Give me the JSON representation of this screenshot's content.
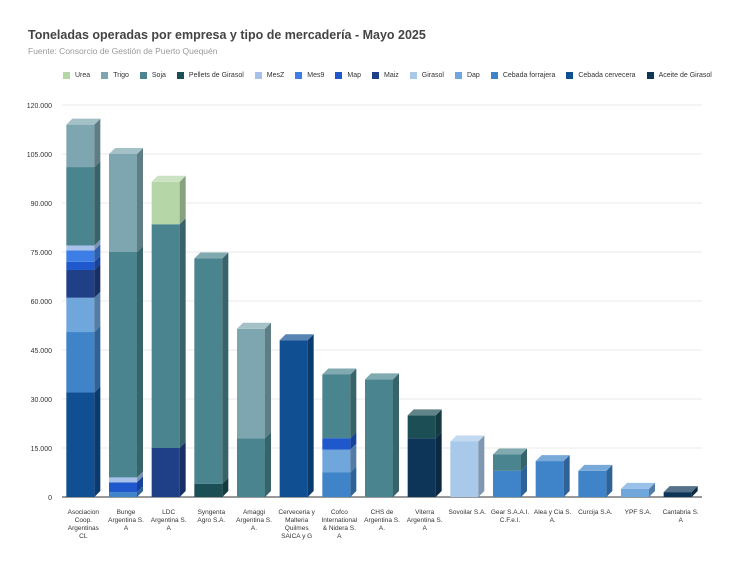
{
  "header": {
    "title": "Toneladas operadas por empresa y tipo de mercadería - Mayo 2025",
    "subtitle": "Fuente: Consorcio de Gestión de Puerto Quequén"
  },
  "chart_data": {
    "type": "bar",
    "stacked": true,
    "title": "Toneladas operadas por empresa y tipo de mercadería - Mayo 2025",
    "subtitle": "Fuente: Consorcio de Gestión de Puerto Quequén",
    "xlabel": "",
    "ylabel": "",
    "ylim": [
      0,
      120000
    ],
    "yticks": [
      0,
      15000,
      30000,
      45000,
      60000,
      75000,
      90000,
      105000,
      120000
    ],
    "ytick_labels": [
      "0",
      "15.000",
      "30.000",
      "45.000",
      "60.000",
      "75.000",
      "90.000",
      "105.000",
      "120.000"
    ],
    "grid": true,
    "legend_position": "top",
    "categories": [
      "Asociacion Coop. Argentinas CL",
      "Bunge Argentina S. A",
      "LDC Argentina S. A",
      "Syngenta Agro S.A.",
      "Amaggi Argentina S. A.",
      "Cerveceria y Malteria Quilmes SAICA y G",
      "Cofco International & Nidera S. A",
      "CHS de Argentina S. A.",
      "Viterra Argentina S. A",
      "Sovoilar S.A.",
      "Gear S.A.A.I. C.F.e.I.",
      "Alea y Cia S. A.",
      "Curcija S.A.",
      "YPF S.A.",
      "Cantabria S. A"
    ],
    "category_lines": [
      [
        "Asociacion",
        "Coop.",
        "Argentinas",
        "CL"
      ],
      [
        "Bunge",
        "Argentina S.",
        "A"
      ],
      [
        "LDC",
        "Argentina S.",
        "A"
      ],
      [
        "Syngenta",
        "Agro S.A."
      ],
      [
        "Amaggi",
        "Argentina S.",
        "A."
      ],
      [
        "Cerveceria y",
        "Malteria",
        "Quilmes",
        "SAICA y G"
      ],
      [
        "Cofco",
        "International",
        "& Nidera S.",
        "A"
      ],
      [
        "CHS de",
        "Argentina S.",
        "A."
      ],
      [
        "Viterra",
        "Argentina S.",
        "A"
      ],
      [
        "Sovoilar S.A."
      ],
      [
        "Gear S.A.A.I.",
        "C.F.e.I."
      ],
      [
        "Alea y Cia S.",
        "A."
      ],
      [
        "Curcija S.A."
      ],
      [
        "YPF S.A."
      ],
      [
        "Cantabria S.",
        "A"
      ]
    ],
    "series": [
      {
        "name": "Aceite de Girasol",
        "color": "#0d3558",
        "values": [
          0,
          0,
          0,
          0,
          0,
          0,
          0,
          0,
          18000,
          0,
          0,
          0,
          0,
          0,
          1500
        ]
      },
      {
        "name": "Cebada cervecera",
        "color": "#0f4f92",
        "values": [
          32000,
          0,
          0,
          0,
          0,
          48000,
          0,
          0,
          0,
          0,
          0,
          0,
          0,
          0,
          0
        ]
      },
      {
        "name": "Cebada forrajera",
        "color": "#3f84c9",
        "values": [
          18500,
          1500,
          0,
          0,
          0,
          0,
          7500,
          0,
          0,
          0,
          8000,
          11000,
          8000,
          0,
          0
        ]
      },
      {
        "name": "Dap",
        "color": "#6fa6dc",
        "values": [
          10500,
          0,
          0,
          0,
          0,
          0,
          7000,
          0,
          0,
          0,
          0,
          0,
          0,
          2500,
          0
        ]
      },
      {
        "name": "Girasol",
        "color": "#a9c9ea",
        "values": [
          0,
          0,
          0,
          0,
          0,
          0,
          0,
          0,
          0,
          17000,
          0,
          0,
          0,
          0,
          0
        ]
      },
      {
        "name": "Maiz",
        "color": "#1f3f87",
        "values": [
          8500,
          0,
          15000,
          0,
          0,
          0,
          0,
          0,
          0,
          0,
          0,
          0,
          0,
          0,
          0
        ]
      },
      {
        "name": "Map",
        "color": "#1f58cc",
        "values": [
          2500,
          3000,
          0,
          0,
          0,
          0,
          3500,
          0,
          0,
          0,
          0,
          0,
          0,
          0,
          0
        ]
      },
      {
        "name": "Mes9",
        "color": "#3d7ee6",
        "values": [
          3500,
          0,
          0,
          0,
          0,
          0,
          0,
          0,
          0,
          0,
          0,
          0,
          0,
          0,
          0
        ]
      },
      {
        "name": "MesZ",
        "color": "#a7c1ea",
        "values": [
          1500,
          1500,
          0,
          0,
          0,
          0,
          0,
          0,
          0,
          0,
          0,
          0,
          0,
          0,
          0
        ]
      },
      {
        "name": "Pellets de Girasol",
        "color": "#1c4f55",
        "values": [
          0,
          0,
          0,
          4000,
          0,
          0,
          0,
          0,
          7000,
          0,
          0,
          0,
          0,
          0,
          0
        ]
      },
      {
        "name": "Soja",
        "color": "#4a848e",
        "values": [
          24000,
          69000,
          68500,
          69000,
          18000,
          0,
          19500,
          36000,
          0,
          0,
          5000,
          0,
          0,
          0,
          0
        ]
      },
      {
        "name": "Trigo",
        "color": "#7ea6b1",
        "values": [
          13000,
          30000,
          0,
          0,
          33500,
          0,
          0,
          0,
          0,
          0,
          0,
          0,
          0,
          0,
          0
        ]
      },
      {
        "name": "Urea",
        "color": "#b5d7a8",
        "values": [
          0,
          0,
          13000,
          0,
          0,
          0,
          0,
          0,
          0,
          0,
          0,
          0,
          0,
          0,
          0
        ]
      }
    ],
    "legend_order": [
      "Urea",
      "Trigo",
      "Soja",
      "Pellets de Girasol",
      "MesZ",
      "Mes9",
      "Map",
      "Maiz",
      "Girasol",
      "Dap",
      "Cebada forrajera",
      "Cebada cervecera",
      "Aceite de Girasol"
    ]
  }
}
